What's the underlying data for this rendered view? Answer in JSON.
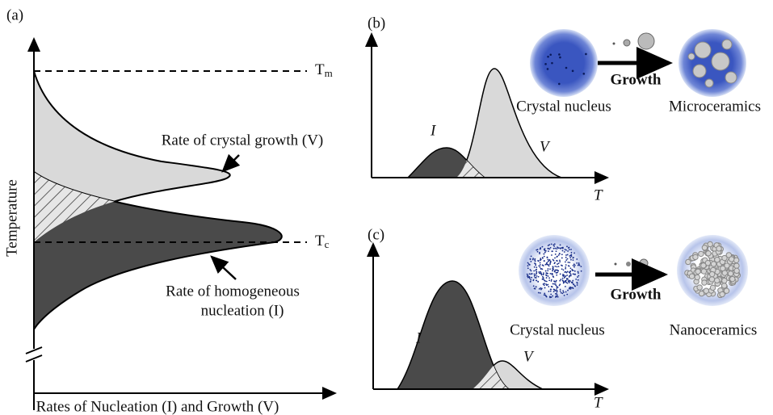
{
  "panel_a": {
    "label": "(a)",
    "tm": {
      "symbol": "T",
      "subscript": "m"
    },
    "tc": {
      "symbol": "T",
      "subscript": "c"
    },
    "growth_label": "Rate of crystal growth (V)",
    "nucleation_label": [
      "Rate of homogeneous",
      "nucleation (I)"
    ],
    "y_axis": "Temperature",
    "x_axis": "Rates of Nucleation (I) and Growth (V)"
  },
  "panel_b": {
    "label": "(b)",
    "curve_i": "I",
    "curve_v": "V",
    "x_axis": "T",
    "start": "Crystal nucleus",
    "process": "Growth",
    "end": "Microceramics"
  },
  "panel_c": {
    "label": "(c)",
    "curve_i": "I",
    "curve_v": "V",
    "x_axis": "T",
    "start": "Crystal nucleus",
    "process": "Growth",
    "end": "Nanoceramics"
  }
}
